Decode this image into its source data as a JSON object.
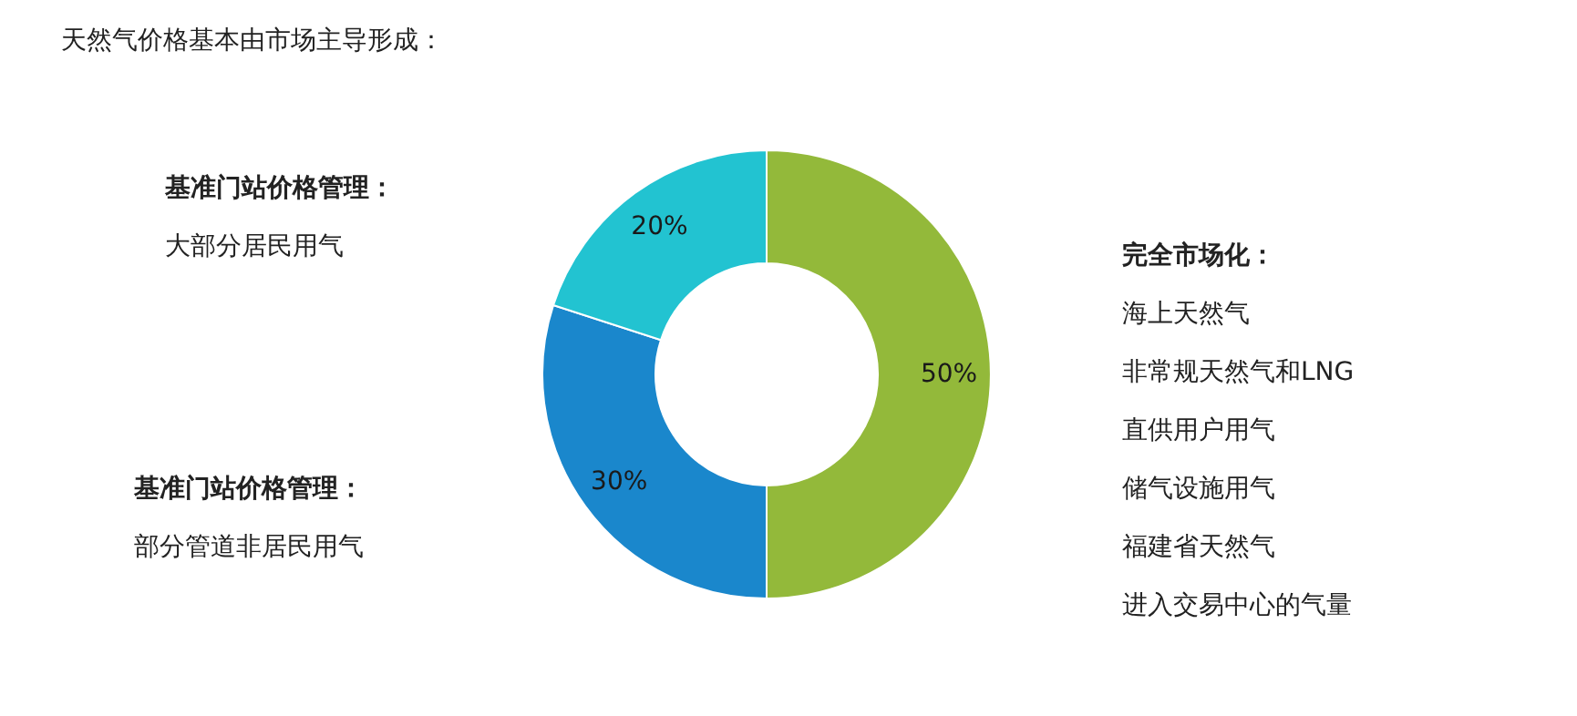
{
  "chart_data": {
    "type": "donut",
    "title": "天然气价格基本由市场主导形成：",
    "categories": [
      null,
      null,
      null
    ],
    "values": [
      50,
      30,
      20
    ],
    "colors": [
      "#93b93a",
      "#1a87cc",
      "#22c3d1"
    ],
    "value_labels": [
      "50%",
      "30%",
      "20%"
    ],
    "annotations": [
      "完全市场化：",
      "海上天然气",
      "非常规天然气和LNG",
      "直供用户用气",
      "储气设施用气",
      "福建省天然气",
      "进入交易中心的气量",
      "基准门站价格管理：",
      "部分管道非居民用气",
      "基准门站价格管理：",
      "大部分居民用气"
    ]
  }
}
